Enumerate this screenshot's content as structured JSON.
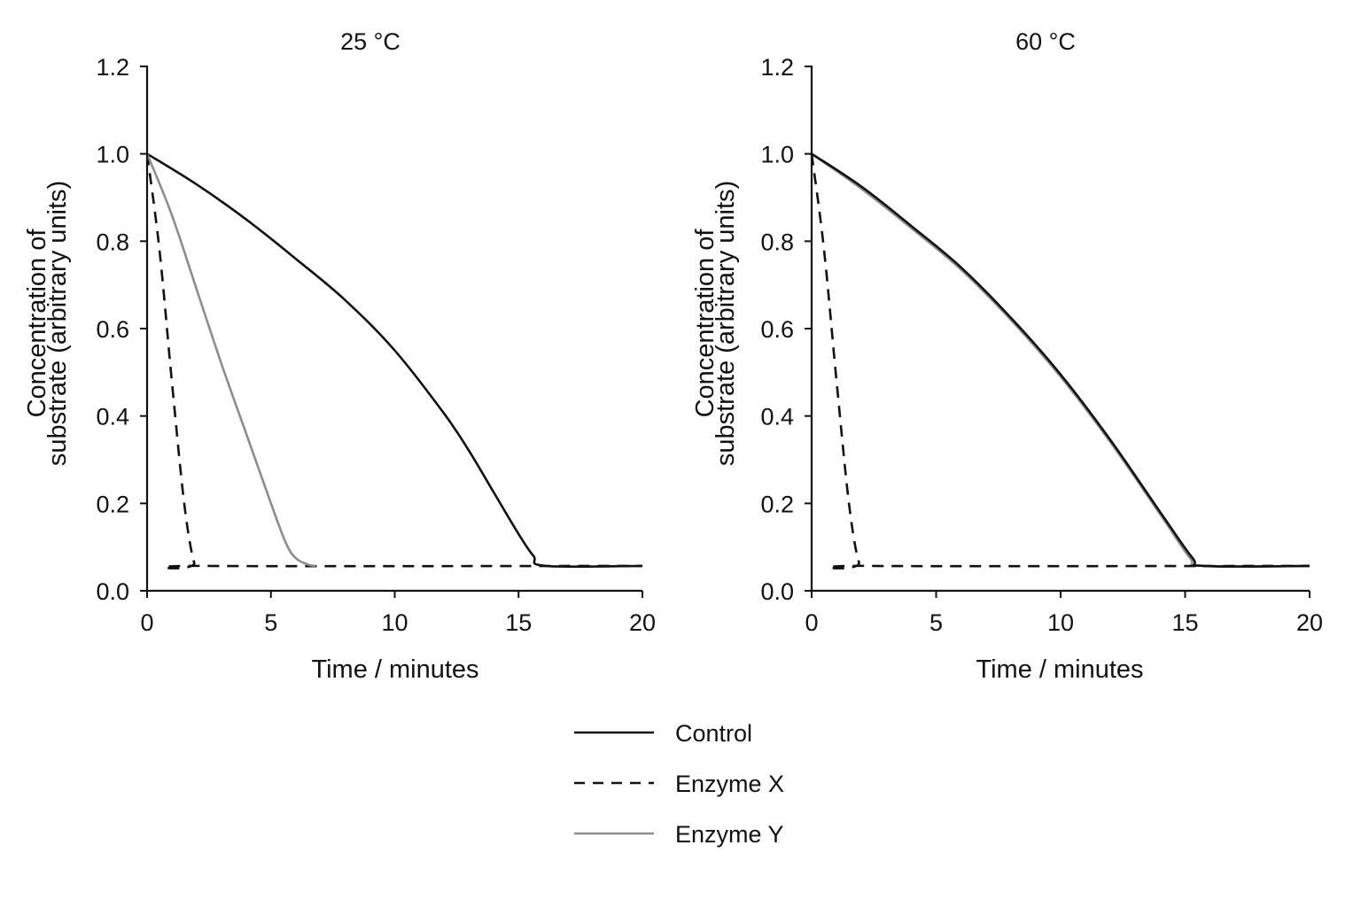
{
  "chart_data": [
    {
      "type": "line",
      "title": "25 °C",
      "xlabel": "Time / minutes",
      "ylabel": [
        "Concentration of",
        "substrate (arbitrary units)"
      ],
      "xlim": [
        0,
        20
      ],
      "ylim": [
        0,
        1.2
      ],
      "xticks": [
        "0",
        "5",
        "10",
        "15",
        "20"
      ],
      "yticks": [
        "0.0",
        "0.2",
        "0.4",
        "0.6",
        "0.8",
        "1.0",
        "1.2"
      ],
      "grid": false,
      "series": [
        {
          "name": "Control",
          "color": "#111111",
          "dash": "solid",
          "x": [
            0,
            2,
            4,
            6,
            8,
            10,
            12,
            13,
            14,
            15,
            15.6,
            16.1,
            20
          ],
          "y": [
            1.0,
            0.93,
            0.85,
            0.76,
            0.665,
            0.55,
            0.405,
            0.32,
            0.225,
            0.13,
            0.08,
            0.057,
            0.057
          ]
        },
        {
          "name": "Enzyme X",
          "color": "#111111",
          "dash": "dashed",
          "x": [
            0,
            0.5,
            1.0,
            1.5,
            1.9,
            2.2,
            20
          ],
          "y": [
            1.0,
            0.78,
            0.48,
            0.2,
            0.065,
            0.057,
            0.057
          ]
        },
        {
          "name": "Enzyme Y",
          "color": "#8c8c8c",
          "dash": "solid",
          "x": [
            0,
            1,
            2,
            3,
            4,
            5,
            5.6,
            6.0,
            6.5,
            6.8
          ],
          "y": [
            1.0,
            0.86,
            0.69,
            0.52,
            0.36,
            0.2,
            0.11,
            0.075,
            0.06,
            0.057
          ]
        }
      ]
    },
    {
      "type": "line",
      "title": "60 °C",
      "xlabel": "Time / minutes",
      "ylabel": [
        "Concentration of",
        "substrate (arbitrary units)"
      ],
      "xlim": [
        0,
        20
      ],
      "ylim": [
        0,
        1.2
      ],
      "xticks": [
        "0",
        "5",
        "10",
        "15",
        "20"
      ],
      "yticks": [
        "0.0",
        "0.2",
        "0.4",
        "0.6",
        "0.8",
        "1.0",
        "1.2"
      ],
      "grid": false,
      "series": [
        {
          "name": "Enzyme Y",
          "color": "#8c8c8c",
          "dash": "solid",
          "x": [
            0,
            2,
            4,
            6,
            8,
            10,
            12,
            14,
            15.2,
            15.7,
            20
          ],
          "y": [
            1.0,
            0.92,
            0.83,
            0.735,
            0.62,
            0.49,
            0.34,
            0.175,
            0.075,
            0.057,
            0.057
          ]
        },
        {
          "name": "Control",
          "color": "#111111",
          "dash": "solid",
          "x": [
            0,
            2,
            4,
            6,
            8,
            10,
            12,
            14,
            15.3,
            15.8,
            20
          ],
          "y": [
            1.0,
            0.925,
            0.835,
            0.74,
            0.625,
            0.495,
            0.345,
            0.18,
            0.075,
            0.057,
            0.057
          ]
        },
        {
          "name": "Enzyme X",
          "color": "#111111",
          "dash": "dashed",
          "x": [
            0,
            0.5,
            1.0,
            1.5,
            1.9,
            2.2,
            20
          ],
          "y": [
            1.0,
            0.78,
            0.48,
            0.2,
            0.065,
            0.057,
            0.057
          ]
        }
      ]
    }
  ],
  "legend": {
    "placement": "bottom-center",
    "items": [
      {
        "label": "Control",
        "color": "#111111",
        "dash": "solid"
      },
      {
        "label": "Enzyme X",
        "color": "#111111",
        "dash": "dashed"
      },
      {
        "label": "Enzyme Y",
        "color": "#8c8c8c",
        "dash": "solid"
      }
    ]
  }
}
